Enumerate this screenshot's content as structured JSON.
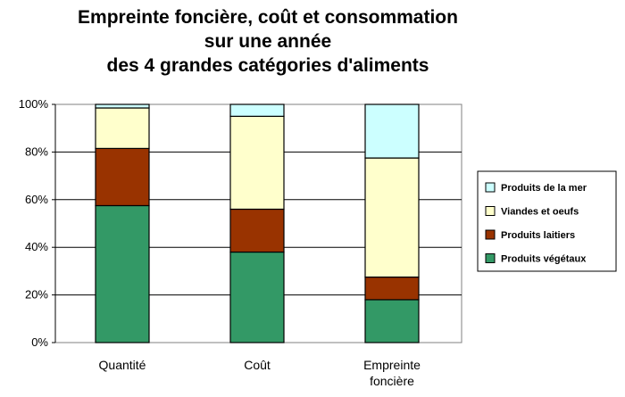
{
  "chart_data": {
    "type": "bar",
    "stacked": true,
    "title": [
      "Empreinte foncière, coût et consommation",
      "sur une année",
      "des 4 grandes catégories d'aliments"
    ],
    "categories": [
      [
        "Quantité"
      ],
      [
        "Coût"
      ],
      [
        "Empreinte",
        "foncière"
      ]
    ],
    "ylim": [
      0,
      100
    ],
    "yticks": [
      "0%",
      "20%",
      "40%",
      "60%",
      "80%",
      "100%"
    ],
    "grid": true,
    "legend_position": "right",
    "series": [
      {
        "name": "Produits végétaux",
        "color": "#339966",
        "values": [
          57.5,
          38,
          18
        ]
      },
      {
        "name": "Produits laitiers",
        "color": "#993300",
        "values": [
          24,
          18,
          9.5
        ]
      },
      {
        "name": "Viandes et oeufs",
        "color": "#FFFFCC",
        "values": [
          17,
          39,
          50
        ]
      },
      {
        "name": "Produits de la mer",
        "color": "#CCFFFF",
        "values": [
          1.5,
          5,
          22.5
        ]
      }
    ],
    "legend_order": [
      "Produits de la mer",
      "Viandes et oeufs",
      "Produits laitiers",
      "Produits végétaux"
    ]
  }
}
